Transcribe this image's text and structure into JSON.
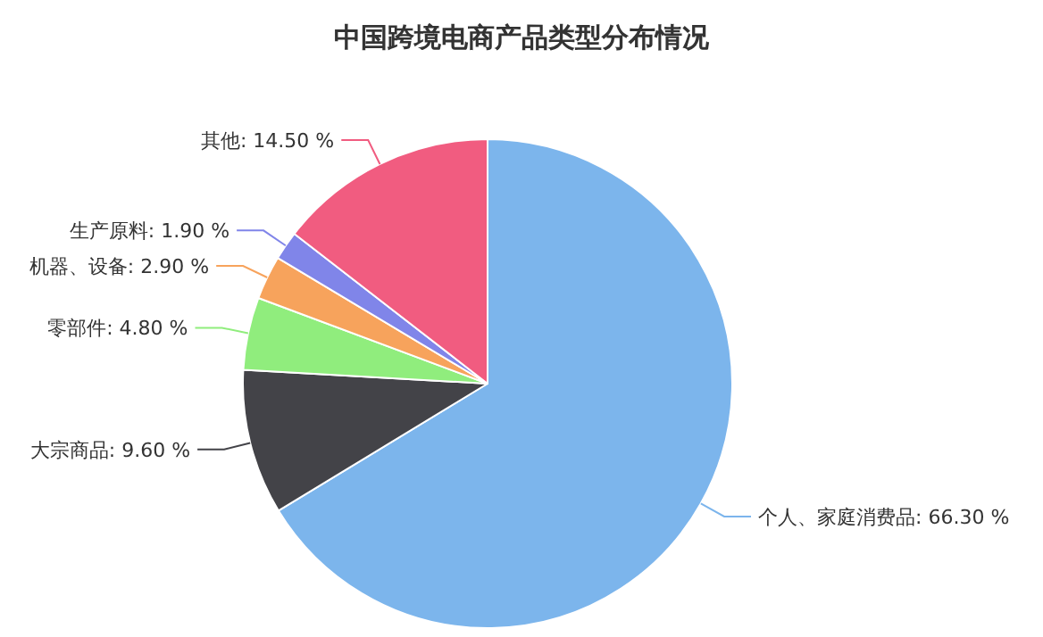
{
  "chart_data": {
    "type": "pie",
    "title": "中国跨境电商产品类型分布情况",
    "categories": [
      "个人、家庭消费品",
      "大宗商品",
      "零部件",
      "机器、设备",
      "生产原料",
      "其他"
    ],
    "values": [
      66.3,
      9.6,
      4.8,
      2.9,
      1.9,
      14.5
    ],
    "value_labels": [
      "66.30 %",
      "9.60 %",
      "4.80 %",
      "2.90 %",
      "1.90 %",
      "14.50 %"
    ],
    "colors": [
      "#7cb5ec",
      "#434348",
      "#90ed7d",
      "#f7a35c",
      "#8085e9",
      "#f15c80"
    ]
  }
}
